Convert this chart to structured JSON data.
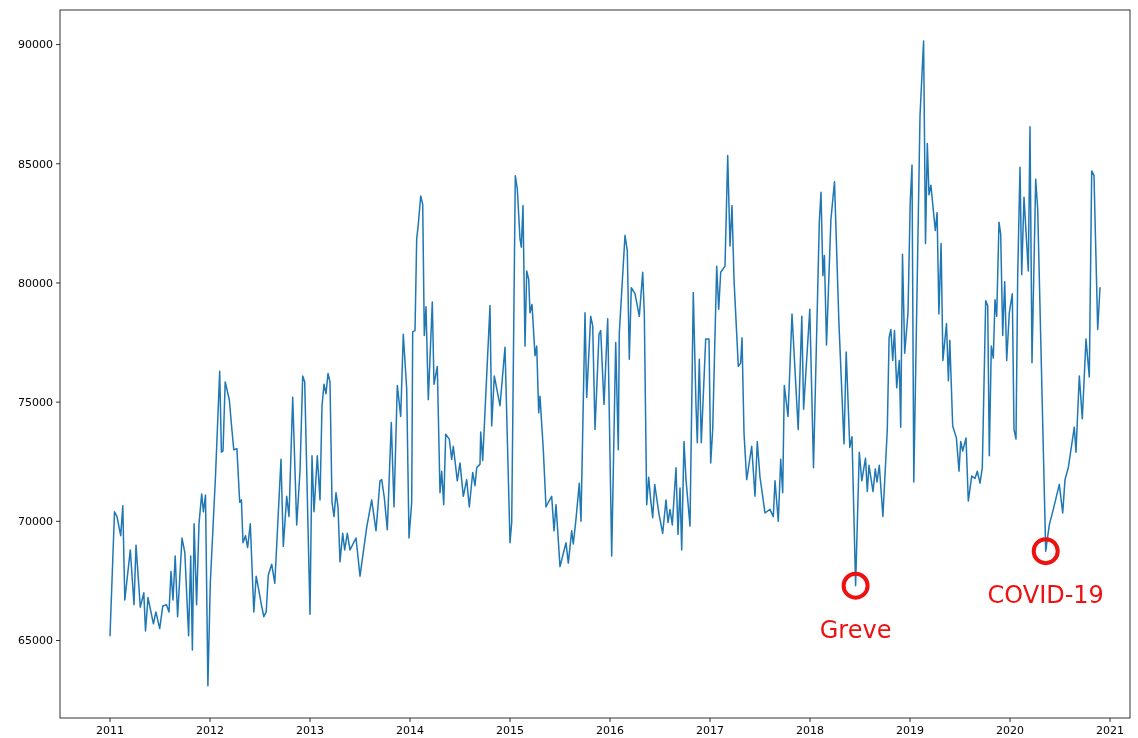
{
  "chart_data": {
    "type": "line",
    "color": "#1f77b4",
    "x": [
      2011.0,
      2011.045,
      2011.07,
      2011.107,
      2011.128,
      2011.148,
      2011.203,
      2011.24,
      2011.26,
      2011.303,
      2011.338,
      2011.355,
      2011.38,
      2011.434,
      2011.459,
      2011.497,
      2011.528,
      2011.565,
      2011.59,
      2011.61,
      2011.63,
      2011.652,
      2011.676,
      2011.72,
      2011.748,
      2011.786,
      2011.807,
      2011.824,
      2011.841,
      2011.866,
      2011.89,
      2011.917,
      2011.934,
      2011.955,
      2011.979,
      2012.003,
      2012.055,
      2012.097,
      2012.114,
      2012.13,
      2012.152,
      2012.193,
      2012.22,
      2012.238,
      2012.269,
      2012.297,
      2012.314,
      2012.33,
      2012.355,
      2012.376,
      2012.403,
      2012.438,
      2012.462,
      2012.493,
      2012.514,
      2012.538,
      2012.562,
      2012.583,
      2012.617,
      2012.648,
      2012.71,
      2012.733,
      2012.767,
      2012.79,
      2012.827,
      2012.867,
      2012.9,
      2012.927,
      2012.947,
      2013.0,
      2013.02,
      2013.04,
      2013.073,
      2013.1,
      2013.12,
      2013.14,
      2013.16,
      2013.18,
      2013.2,
      2013.22,
      2013.24,
      2013.26,
      2013.28,
      2013.3,
      2013.327,
      2013.347,
      2013.373,
      2013.4,
      2013.46,
      2013.5,
      2013.567,
      2013.617,
      2013.66,
      2013.7,
      2013.717,
      2013.743,
      2013.773,
      2013.813,
      2013.84,
      2013.873,
      2013.907,
      2013.933,
      2013.967,
      2013.99,
      2014.017,
      2014.027,
      2014.05,
      2014.067,
      2014.083,
      2014.107,
      2014.127,
      2014.143,
      2014.16,
      2014.183,
      2014.223,
      2014.24,
      2014.273,
      2014.3,
      2014.317,
      2014.337,
      2014.357,
      2014.393,
      2014.417,
      2014.433,
      2014.473,
      2014.5,
      2014.533,
      2014.567,
      2014.593,
      2014.627,
      2014.65,
      2014.667,
      2014.7,
      2014.707,
      2014.727,
      2014.8,
      2014.817,
      2014.843,
      2014.9,
      2014.95,
      2015.0,
      2015.017,
      2015.053,
      2015.073,
      2015.1,
      2015.113,
      2015.13,
      2015.15,
      2015.167,
      2015.187,
      2015.2,
      2015.22,
      2015.25,
      2015.267,
      2015.287,
      2015.3,
      2015.333,
      2015.36,
      2015.383,
      2015.417,
      2015.44,
      2015.46,
      2015.5,
      2015.56,
      2015.583,
      2015.617,
      2015.633,
      2015.66,
      2015.693,
      2015.71,
      2015.75,
      2015.767,
      2015.807,
      2015.827,
      2015.85,
      2015.89,
      2015.907,
      2015.94,
      2015.977,
      2016.017,
      2016.057,
      2016.083,
      2016.093,
      2016.15,
      2016.173,
      2016.193,
      2016.213,
      2016.25,
      2016.293,
      2016.327,
      2016.343,
      2016.367,
      2016.387,
      2016.407,
      2016.427,
      2016.447,
      2016.49,
      2016.527,
      2016.56,
      2016.58,
      2016.6,
      2016.623,
      2016.66,
      2016.68,
      2016.7,
      2016.717,
      2016.74,
      2016.76,
      2016.8,
      2016.833,
      2016.86,
      2016.873,
      2016.893,
      2016.913,
      2016.957,
      2016.99,
      2017.007,
      2017.027,
      2017.067,
      2017.087,
      2017.107,
      2017.15,
      2017.177,
      2017.2,
      2017.22,
      2017.24,
      2017.283,
      2017.307,
      2017.32,
      2017.34,
      2017.367,
      2017.417,
      2017.45,
      2017.473,
      2017.5,
      2017.55,
      2017.6,
      2017.633,
      2017.65,
      2017.683,
      2017.707,
      2017.727,
      2017.743,
      2017.78,
      2017.82,
      2017.882,
      2017.918,
      2017.936,
      2017.998,
      2018.035,
      2018.093,
      2018.11,
      2018.129,
      2018.144,
      2018.165,
      2018.209,
      2018.245,
      2018.289,
      2018.34,
      2018.362,
      2018.398,
      2018.42,
      2018.456,
      2018.493,
      2018.518,
      2018.555,
      2018.573,
      2018.59,
      2018.63,
      2018.653,
      2018.67,
      2018.693,
      2018.729,
      2018.773,
      2018.791,
      2018.809,
      2018.827,
      2018.845,
      2018.867,
      2018.893,
      2018.907,
      2018.925,
      2018.947,
      2018.98,
      2019.002,
      2019.02,
      2019.038,
      2019.1,
      2019.136,
      2019.155,
      2019.173,
      2019.19,
      2019.209,
      2019.253,
      2019.271,
      2019.289,
      2019.311,
      2019.329,
      2019.365,
      2019.384,
      2019.398,
      2019.427,
      2019.464,
      2019.49,
      2019.507,
      2019.527,
      2019.56,
      2019.583,
      2019.617,
      2019.65,
      2019.673,
      2019.7,
      2019.723,
      2019.757,
      2019.777,
      2019.793,
      2019.813,
      2019.833,
      2019.85,
      2019.867,
      2019.89,
      2019.907,
      2019.927,
      2019.947,
      2019.967,
      2019.993,
      2020.023,
      2020.04,
      2020.06,
      2020.077,
      2020.1,
      2020.117,
      2020.14,
      2020.183,
      2020.2,
      2020.22,
      2020.257,
      2020.277,
      2020.357,
      2020.393,
      2020.433,
      2020.493,
      2020.527,
      2020.55,
      2020.583,
      2020.643,
      2020.66,
      2020.693,
      2020.723,
      2020.76,
      2020.793,
      2020.817,
      2020.84,
      2020.877,
      2020.9
    ],
    "values": [
      65200,
      70400,
      70200,
      69400,
      70650,
      66700,
      68800,
      66500,
      69000,
      66400,
      67000,
      65400,
      66800,
      65700,
      66200,
      65500,
      66450,
      66500,
      66200,
      67900,
      66700,
      68550,
      66000,
      69300,
      68700,
      65200,
      68550,
      64600,
      69900,
      66500,
      69900,
      71150,
      70400,
      71100,
      63100,
      67400,
      71900,
      76300,
      72900,
      72950,
      75850,
      75100,
      73800,
      73000,
      73050,
      70800,
      70900,
      69100,
      69400,
      68900,
      69900,
      66200,
      67700,
      67000,
      66500,
      66000,
      66200,
      67750,
      68200,
      67400,
      72600,
      68950,
      71050,
      70200,
      75200,
      69850,
      72100,
      76100,
      75850,
      66100,
      72750,
      70400,
      72750,
      70900,
      74850,
      75750,
      75350,
      76200,
      75850,
      70800,
      70200,
      71200,
      70600,
      68300,
      69500,
      68800,
      69500,
      68800,
      69300,
      67700,
      69750,
      70900,
      69600,
      71700,
      71750,
      71000,
      69650,
      74150,
      70600,
      75700,
      74400,
      77850,
      75550,
      69300,
      70800,
      77950,
      78000,
      81850,
      82450,
      83650,
      83300,
      77800,
      79000,
      75100,
      79200,
      75750,
      76500,
      71200,
      72100,
      70700,
      73650,
      73450,
      72600,
      73150,
      71700,
      72450,
      71050,
      71750,
      70600,
      72050,
      71500,
      72250,
      72400,
      73750,
      72550,
      79050,
      74000,
      76100,
      74850,
      77300,
      69100,
      69950,
      84500,
      83950,
      81850,
      81500,
      83250,
      77350,
      80500,
      80150,
      78750,
      79100,
      76950,
      77350,
      74550,
      75250,
      73000,
      70600,
      70800,
      71050,
      69600,
      70700,
      68100,
      69100,
      68250,
      69600,
      69050,
      70100,
      71600,
      70000,
      78750,
      75200,
      78600,
      78200,
      73850,
      77850,
      78000,
      74900,
      78500,
      68550,
      77500,
      73000,
      77900,
      82000,
      81350,
      76800,
      79800,
      79550,
      78600,
      80450,
      78750,
      70700,
      71850,
      70900,
      70150,
      71550,
      70300,
      69500,
      70900,
      69950,
      70500,
      69850,
      72250,
      69450,
      71400,
      68800,
      73350,
      71750,
      69800,
      79600,
      74850,
      73300,
      76800,
      73300,
      77650,
      77650,
      72450,
      73850,
      80700,
      78900,
      80450,
      80700,
      85350,
      81550,
      83250,
      80150,
      76500,
      76650,
      77700,
      73700,
      71750,
      73150,
      71050,
      73350,
      71850,
      70350,
      70500,
      70200,
      71700,
      70000,
      72600,
      71200,
      75700,
      74400,
      78700,
      73850,
      78600,
      74700,
      78900,
      72250,
      82550,
      83800,
      80300,
      81150,
      77400,
      82650,
      84250,
      78350,
      73250,
      77100,
      73100,
      73550,
      67300,
      72900,
      71700,
      72650,
      71250,
      72350,
      71250,
      72200,
      71650,
      72350,
      70200,
      73850,
      77700,
      78050,
      76750,
      78000,
      75600,
      76750,
      73950,
      81200,
      77050,
      78750,
      83350,
      84950,
      71650,
      87000,
      90150,
      81650,
      85850,
      83700,
      84100,
      82200,
      82950,
      78700,
      81650,
      76750,
      78300,
      75900,
      77600,
      74000,
      73500,
      72100,
      73350,
      72950,
      73500,
      70850,
      71900,
      71800,
      72100,
      71600,
      72250,
      79250,
      79050,
      72750,
      77350,
      76850,
      79300,
      78600,
      82550,
      82050,
      77800,
      80050,
      76750,
      78750,
      79550,
      73850,
      73450,
      80300,
      84850,
      80350,
      83600,
      80500,
      86550,
      76650,
      84350,
      83100,
      68750,
      69850,
      70500,
      71550,
      70350,
      71750,
      72250,
      73950,
      72900,
      76100,
      74300,
      77650,
      76050,
      84700,
      84500,
      78050,
      79800
    ],
    "xlim": [
      2010.5,
      2021.2
    ],
    "xticks": [
      2011,
      2012,
      2013,
      2014,
      2015,
      2016,
      2017,
      2018,
      2019,
      2020,
      2021
    ],
    "ylim": [
      61750,
      91450
    ],
    "yticks": [
      65000,
      70000,
      75000,
      80000,
      85000,
      90000
    ],
    "annotations": [
      {
        "text": "Greve",
        "x": 2018.456,
        "y": 67300
      },
      {
        "text": "COVID-19",
        "x": 2020.357,
        "y": 68750
      }
    ]
  }
}
